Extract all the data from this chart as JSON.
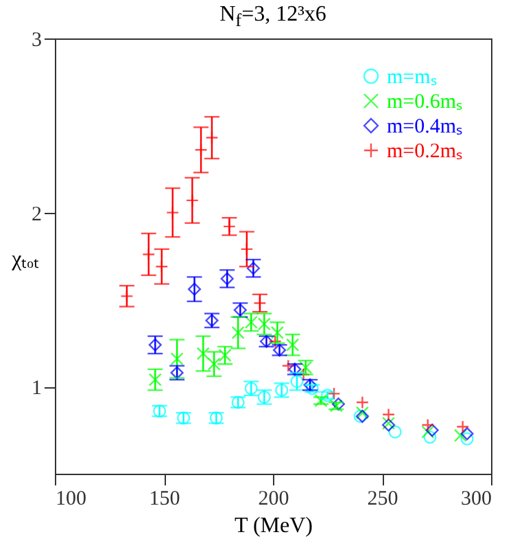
{
  "chart_data": {
    "type": "scatter",
    "title": "N$_{f}$=3,  12³x6",
    "xlabel": "T (MeV)",
    "ylabel": "χₜₒₜ",
    "xlim": [
      100,
      300
    ],
    "xticks": [
      100,
      150,
      200,
      250,
      300
    ],
    "ylim": [
      0.5,
      3
    ],
    "yticks": [
      1,
      2,
      3
    ],
    "legend": "top right",
    "series": [
      {
        "name": "m=mₛ",
        "color": "#00ffff",
        "marker": "circle",
        "x": [
          148,
          159,
          174,
          184,
          190,
          196,
          204,
          211,
          218,
          225,
          240,
          256,
          272,
          289
        ],
        "values": [
          0.86,
          0.82,
          0.82,
          0.91,
          0.99,
          0.94,
          0.98,
          1.03,
          0.99,
          0.95,
          0.83,
          0.74,
          0.71,
          0.7
        ],
        "errors": [
          0.03,
          0.03,
          0.03,
          0.03,
          0.04,
          0.04,
          0.04,
          0.05,
          0.02,
          0.02,
          null,
          null,
          null,
          null
        ]
      },
      {
        "name": "m=0.6mₛ",
        "color": "#00ff00",
        "marker": "x",
        "x": [
          146,
          156,
          168,
          173,
          178,
          184,
          190,
          196,
          202,
          209,
          215,
          222,
          229,
          241,
          253,
          271,
          286
        ],
        "values": [
          1.04,
          1.16,
          1.19,
          1.13,
          1.18,
          1.31,
          1.37,
          1.36,
          1.31,
          1.24,
          1.11,
          0.92,
          0.89,
          0.85,
          0.79,
          0.74,
          0.72
        ],
        "errors": [
          0.06,
          0.11,
          0.1,
          0.07,
          0.05,
          0.09,
          0.05,
          0.06,
          0.06,
          0.06,
          0.04,
          0.02,
          0.02,
          null,
          null,
          null,
          null
        ]
      },
      {
        "name": "m=0.4mₛ",
        "color": "#0000ff",
        "marker": "diamond",
        "x": [
          146,
          156,
          164,
          172,
          179,
          185,
          191,
          197,
          203,
          210,
          217,
          230,
          241,
          253,
          273,
          289
        ],
        "values": [
          1.24,
          1.08,
          1.56,
          1.38,
          1.62,
          1.44,
          1.68,
          1.26,
          1.21,
          1.1,
          1.01,
          0.9,
          0.83,
          0.78,
          0.75,
          0.73
        ],
        "errors": [
          0.05,
          0.04,
          0.07,
          0.04,
          0.05,
          0.04,
          0.05,
          0.03,
          0.03,
          0.03,
          0.03,
          null,
          null,
          null,
          null,
          null
        ]
      },
      {
        "name": "m=0.2mₛ",
        "color": "#ff0000",
        "marker": "cross",
        "x": [
          133,
          143,
          149,
          154,
          163,
          167,
          172,
          180,
          188,
          194,
          201,
          207,
          214,
          228,
          241,
          253,
          271,
          287
        ],
        "values": [
          1.52,
          1.76,
          1.69,
          2.0,
          2.07,
          2.36,
          2.43,
          1.92,
          1.79,
          1.48,
          1.26,
          1.12,
          1.07,
          0.96,
          0.91,
          0.84,
          0.78,
          0.77
        ],
        "errors": [
          0.06,
          0.12,
          0.1,
          0.14,
          0.13,
          0.13,
          0.12,
          0.05,
          0.1,
          0.05,
          null,
          null,
          null,
          null,
          null,
          null,
          null,
          null
        ]
      }
    ]
  }
}
